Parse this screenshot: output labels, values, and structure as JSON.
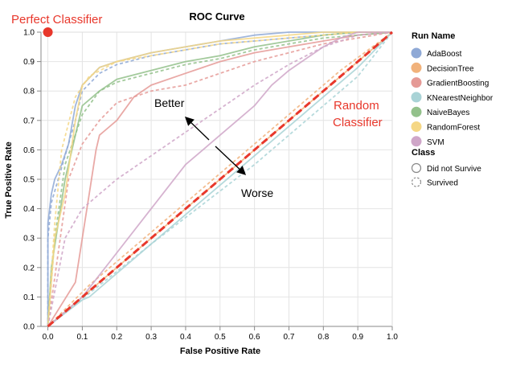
{
  "chart_data": {
    "type": "line",
    "title": "ROC Curve",
    "xlabel": "False Positive Rate",
    "ylabel": "True Positive Rate",
    "xlim": [
      -0.02,
      1.0
    ],
    "ylim": [
      0.0,
      1.0
    ],
    "xticks": [
      "0.0",
      "0.1",
      "0.2",
      "0.3",
      "0.4",
      "0.5",
      "0.6",
      "0.7",
      "0.8",
      "0.9",
      "1.0"
    ],
    "yticks": [
      "0.0",
      "0.1",
      "0.2",
      "0.3",
      "0.4",
      "0.5",
      "0.6",
      "0.7",
      "0.8",
      "0.9",
      "1.0"
    ],
    "grid": true,
    "legend": {
      "placement": "right",
      "run_title": "Run Name",
      "runs": [
        {
          "name": "AdaBoost",
          "color": "#8fa9d6"
        },
        {
          "name": "DecisionTree",
          "color": "#f1b27b"
        },
        {
          "name": "GradientBoosting",
          "color": "#e59a96"
        },
        {
          "name": "KNearestNeighbor",
          "color": "#a9d3d6"
        },
        {
          "name": "NaiveBayes",
          "color": "#93c18b"
        },
        {
          "name": "RandomForest",
          "color": "#f5d785"
        },
        {
          "name": "SVM",
          "color": "#cfa6c8"
        }
      ],
      "class_title": "Class",
      "classes": [
        {
          "name": "Did not Survive",
          "dash": "solid"
        },
        {
          "name": "Survived",
          "dash": "dashed"
        }
      ]
    },
    "series": [
      {
        "name": "AdaBoost",
        "class": "Did not Survive",
        "color": "#8fa9d6",
        "dash": false,
        "x": [
          0,
          0,
          0.01,
          0.02,
          0.04,
          0.06,
          0.08,
          0.1,
          0.15,
          0.2,
          0.3,
          0.4,
          0.5,
          0.6,
          0.7,
          0.8,
          0.9,
          1.0
        ],
        "y": [
          0,
          0.35,
          0.45,
          0.5,
          0.55,
          0.62,
          0.75,
          0.82,
          0.88,
          0.9,
          0.93,
          0.95,
          0.97,
          0.99,
          1.0,
          1.0,
          1.0,
          1.0
        ]
      },
      {
        "name": "AdaBoost",
        "class": "Survived",
        "color": "#8fa9d6",
        "dash": true,
        "x": [
          0,
          0,
          0.01,
          0.03,
          0.05,
          0.08,
          0.1,
          0.15,
          0.2,
          0.3,
          0.4,
          0.5,
          0.6,
          0.7,
          0.8,
          0.9,
          1.0
        ],
        "y": [
          0,
          0.3,
          0.42,
          0.5,
          0.58,
          0.7,
          0.8,
          0.86,
          0.89,
          0.92,
          0.94,
          0.96,
          0.97,
          0.98,
          0.99,
          1.0,
          1.0
        ]
      },
      {
        "name": "DecisionTree",
        "class": "Did not Survive",
        "color": "#f1b27b",
        "dash": false,
        "x": [
          0,
          1.0
        ],
        "y": [
          0,
          1.0
        ]
      },
      {
        "name": "DecisionTree",
        "class": "Survived",
        "color": "#f1b27b",
        "dash": true,
        "x": [
          0,
          0.12,
          0.5,
          0.85,
          1.0
        ],
        "y": [
          0,
          0.14,
          0.52,
          0.87,
          1.0
        ]
      },
      {
        "name": "GradientBoosting",
        "class": "Did not Survive",
        "color": "#e59a96",
        "dash": false,
        "x": [
          0,
          0.08,
          0.12,
          0.14,
          0.15,
          0.2,
          0.25,
          0.3,
          0.4,
          0.5,
          0.6,
          0.7,
          0.8,
          0.9,
          1.0
        ],
        "y": [
          0,
          0.15,
          0.45,
          0.6,
          0.65,
          0.7,
          0.78,
          0.82,
          0.86,
          0.9,
          0.93,
          0.95,
          0.97,
          0.99,
          1.0
        ]
      },
      {
        "name": "GradientBoosting",
        "class": "Survived",
        "color": "#e59a96",
        "dash": true,
        "x": [
          0,
          0.03,
          0.06,
          0.1,
          0.15,
          0.2,
          0.3,
          0.4,
          0.5,
          0.6,
          0.7,
          0.8,
          0.9,
          1.0
        ],
        "y": [
          0,
          0.25,
          0.5,
          0.62,
          0.7,
          0.76,
          0.8,
          0.82,
          0.86,
          0.9,
          0.93,
          0.96,
          0.98,
          1.0
        ]
      },
      {
        "name": "KNearestNeighbor",
        "class": "Did not Survive",
        "color": "#a9d3d6",
        "dash": false,
        "x": [
          0,
          0.1,
          0.12,
          0.5,
          0.9,
          1.0
        ],
        "y": [
          0,
          0.09,
          0.1,
          0.48,
          0.88,
          1.0
        ]
      },
      {
        "name": "KNearestNeighbor",
        "class": "Survived",
        "color": "#a9d3d6",
        "dash": true,
        "x": [
          0,
          0.3,
          0.6,
          0.9,
          1.0
        ],
        "y": [
          0,
          0.28,
          0.55,
          0.85,
          1.0
        ]
      },
      {
        "name": "NaiveBayes",
        "class": "Did not Survive",
        "color": "#93c18b",
        "dash": false,
        "x": [
          0,
          0.01,
          0.03,
          0.05,
          0.08,
          0.1,
          0.15,
          0.2,
          0.3,
          0.4,
          0.5,
          0.6,
          0.7,
          0.8,
          0.9,
          1.0
        ],
        "y": [
          0,
          0.2,
          0.35,
          0.5,
          0.65,
          0.75,
          0.8,
          0.84,
          0.87,
          0.9,
          0.92,
          0.95,
          0.97,
          0.99,
          1.0,
          1.0
        ]
      },
      {
        "name": "NaiveBayes",
        "class": "Survived",
        "color": "#93c18b",
        "dash": true,
        "x": [
          0,
          0.02,
          0.05,
          0.1,
          0.15,
          0.2,
          0.3,
          0.4,
          0.5,
          0.6,
          0.7,
          0.8,
          0.9,
          1.0
        ],
        "y": [
          0,
          0.3,
          0.55,
          0.72,
          0.8,
          0.83,
          0.86,
          0.89,
          0.91,
          0.94,
          0.96,
          0.98,
          0.99,
          1.0
        ]
      },
      {
        "name": "RandomForest",
        "class": "Did not Survive",
        "color": "#f5d785",
        "dash": false,
        "x": [
          0,
          0.02,
          0.05,
          0.08,
          0.1,
          0.15,
          0.2,
          0.3,
          0.4,
          0.5,
          0.6,
          0.7,
          0.8,
          0.9,
          1.0
        ],
        "y": [
          0,
          0.3,
          0.45,
          0.7,
          0.82,
          0.88,
          0.9,
          0.93,
          0.95,
          0.97,
          0.98,
          0.99,
          1.0,
          1.0,
          1.0
        ]
      },
      {
        "name": "RandomForest",
        "class": "Survived",
        "color": "#f5d785",
        "dash": true,
        "x": [
          0,
          0.02,
          0.04,
          0.08,
          0.12,
          0.2,
          0.3,
          0.4,
          0.5,
          0.6,
          0.7,
          0.8,
          0.9,
          1.0
        ],
        "y": [
          0,
          0.35,
          0.6,
          0.78,
          0.85,
          0.9,
          0.92,
          0.94,
          0.96,
          0.97,
          0.98,
          0.99,
          1.0,
          1.0
        ]
      },
      {
        "name": "SVM",
        "class": "Did not Survive",
        "color": "#cfa6c8",
        "dash": false,
        "x": [
          0,
          0.1,
          0.2,
          0.3,
          0.4,
          0.45,
          0.5,
          0.55,
          0.6,
          0.65,
          0.7,
          0.75,
          0.8,
          0.85,
          0.9,
          1.0
        ],
        "y": [
          0,
          0.1,
          0.25,
          0.4,
          0.55,
          0.6,
          0.65,
          0.7,
          0.75,
          0.82,
          0.87,
          0.91,
          0.95,
          0.98,
          1.0,
          1.0
        ]
      },
      {
        "name": "SVM",
        "class": "Survived",
        "color": "#cfa6c8",
        "dash": true,
        "x": [
          0,
          0.05,
          0.1,
          0.15,
          0.2,
          0.3,
          0.4,
          0.5,
          0.6,
          0.7,
          0.8,
          0.9,
          1.0
        ],
        "y": [
          0,
          0.3,
          0.4,
          0.45,
          0.5,
          0.58,
          0.66,
          0.74,
          0.82,
          0.89,
          0.95,
          0.99,
          1.0
        ]
      },
      {
        "name": "Random Classifier",
        "class": "reference",
        "color": "#e8372b",
        "dash": true,
        "x": [
          0,
          1.0
        ],
        "y": [
          0,
          1.0
        ]
      }
    ],
    "annotations": {
      "perfect_label": "Perfect Classifier",
      "perfect_point": {
        "x": 0.0,
        "y": 1.0
      },
      "random_label_line1": "Random",
      "random_label_line2": "Classifier",
      "better_label": "Better",
      "worse_label": "Worse",
      "accent_color": "#e8372b"
    }
  }
}
